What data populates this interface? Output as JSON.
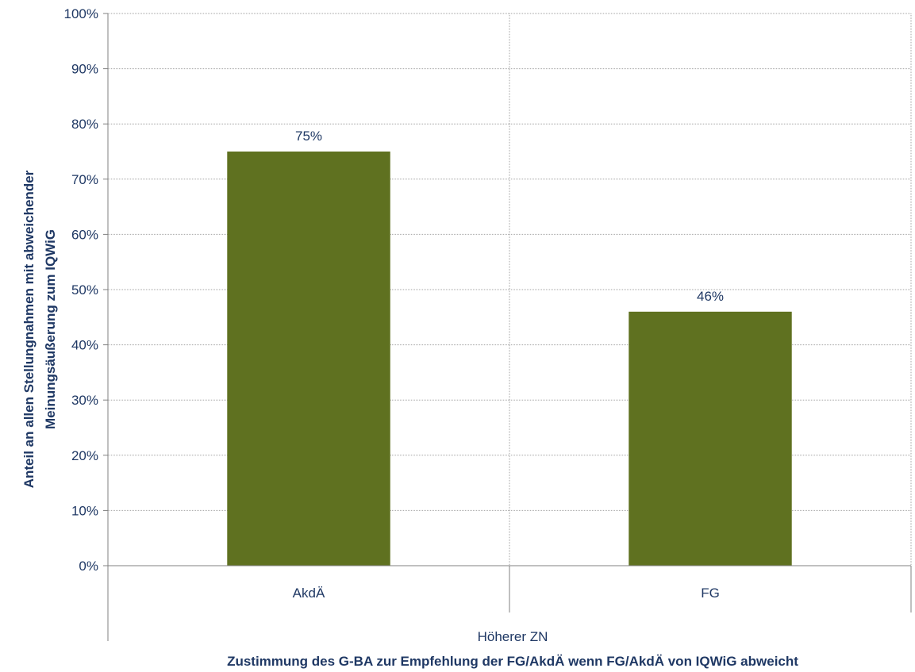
{
  "chart_data": {
    "type": "bar",
    "categories": [
      "AkdÄ",
      "FG"
    ],
    "group_label": "Höherer ZN",
    "series": [
      {
        "values": [
          0.75,
          0.46
        ],
        "data_labels": [
          "75%",
          "46%"
        ]
      }
    ],
    "bar_color": "#5f7120",
    "grid_color": "#a6a6a6",
    "text_color": "#1f3864",
    "xlabel": "Zustimmung des G-BA zur Empfehlung der FG/AkdÄ wenn FG/AkdÄ von IQWiG abweicht",
    "ylabel_lines": [
      "Anteil an allen Stellungnahmen mit abweichender",
      "Meinungsäußerung zum IQWiG"
    ],
    "ylim": [
      0,
      1
    ],
    "yticks": [
      "0%",
      "10%",
      "20%",
      "30%",
      "40%",
      "50%",
      "60%",
      "70%",
      "80%",
      "90%",
      "100%"
    ],
    "grid": true,
    "legend": false
  }
}
